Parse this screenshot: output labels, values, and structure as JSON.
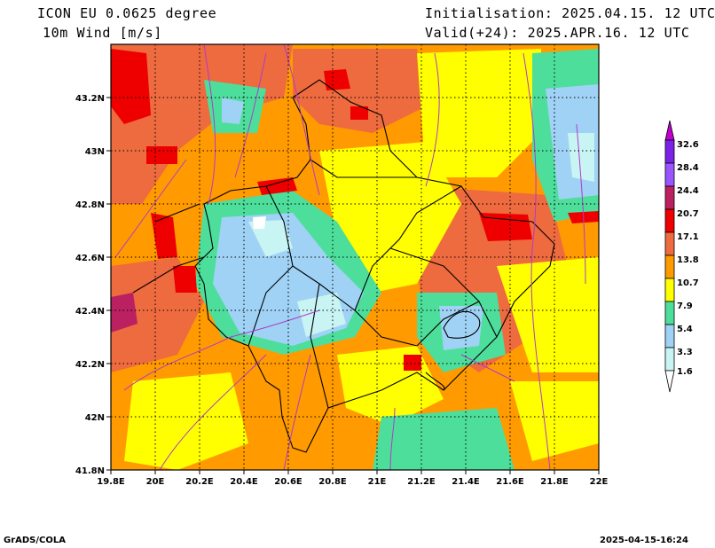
{
  "header": {
    "model": "ICON EU 0.0625 degree",
    "variable": "10m Wind [m/s]",
    "init": "Initialisation: 2025.04.15. 12 UTC",
    "valid": "Valid(+24): 2025.APR.16. 12 UTC"
  },
  "map": {
    "lon_ticks": [
      "19.8E",
      "20E",
      "20.2E",
      "20.4E",
      "20.6E",
      "20.8E",
      "21E",
      "21.2E",
      "21.4E",
      "21.6E",
      "21.8E",
      "22E"
    ],
    "lat_ticks": [
      "43.2N",
      "43N",
      "42.8N",
      "42.6N",
      "42.4N",
      "42.2N",
      "42N",
      "41.8N"
    ]
  },
  "colorbar": {
    "levels": [
      "32.6",
      "28.4",
      "24.4",
      "20.7",
      "17.1",
      "13.8",
      "10.7",
      "7.9",
      "5.4",
      "3.3",
      "1.6"
    ],
    "colors": {
      "lt_1_6": "#ffffff",
      "c_1_6_3_3": "#c8f4f4",
      "c_3_3_5_4": "#9fd2f5",
      "c_5_4_7_9": "#4ede9b",
      "c_7_9_10_7": "#ffff00",
      "c_10_7_13_8": "#ff9a00",
      "c_13_8_17_1": "#ee6a3f",
      "c_17_1_20_7": "#ee0000",
      "c_20_7_24_4": "#bb2060",
      "c_24_4_28_4": "#9955ff",
      "c_28_4_32_6": "#7a22e8",
      "gt_32_6": "#c000d0"
    }
  },
  "footer": {
    "left": "GrADS/COLA",
    "right": "2025-04-15-16:24"
  }
}
